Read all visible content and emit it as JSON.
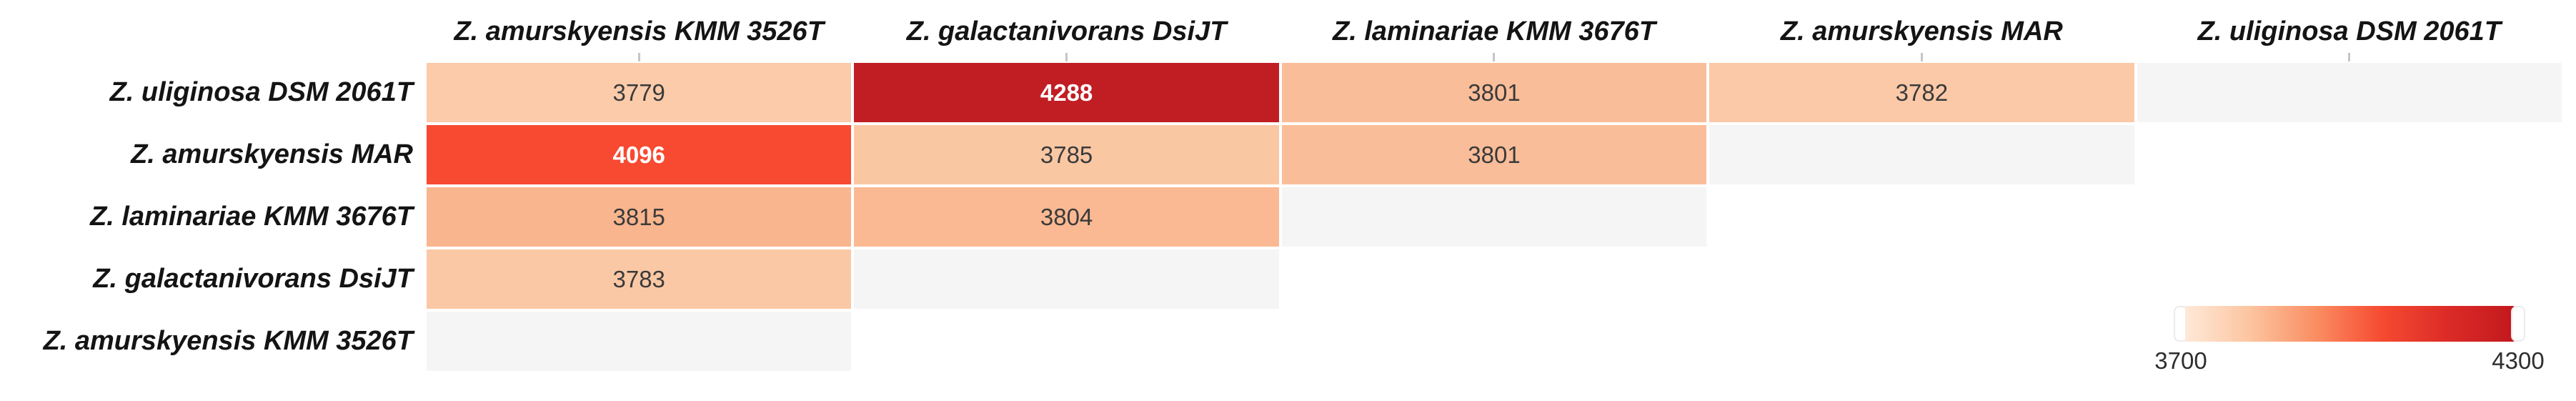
{
  "chart_data": {
    "type": "heatmap",
    "description": "Pairwise lower-triangular matrix of shared values between Zobellia strains",
    "columns": [
      "Z. amurskyensis KMM 3526T",
      "Z. galactanivorans DsiJT",
      "Z. laminariae KMM 3676T",
      "Z. amurskyensis MAR",
      "Z. uliginosa DSM 2061T"
    ],
    "rows": [
      "Z. uliginosa DSM 2061T",
      "Z. amurskyensis MAR",
      "Z. laminariae KMM 3676T",
      "Z. galactanivorans DsiJT",
      "Z. amurskyensis KMM 3526T"
    ],
    "matrix": [
      [
        3779,
        4288,
        3801,
        3782,
        null
      ],
      [
        4096,
        3785,
        3801,
        null,
        null
      ],
      [
        3815,
        3804,
        null,
        null,
        null
      ],
      [
        3783,
        null,
        null,
        null,
        null
      ],
      [
        null,
        null,
        null,
        null,
        null
      ]
    ],
    "value_range": [
      3700,
      4300
    ],
    "legend_position": "bottom-right",
    "grid": false,
    "colorbar": {
      "min_label": "3700",
      "max_label": "4300",
      "stops": [
        "#FEE9D9",
        "#FCC49F",
        "#FA8D62",
        "#F64A31",
        "#DC2B27",
        "#C2191E"
      ],
      "empty_cell_color": "#F5F5F6",
      "tick_color": "#C3C6CA"
    },
    "cells": [
      {
        "value": "3779",
        "bg": "#FBCBAA",
        "fg": "#3A3A3A",
        "weight": "normal"
      },
      {
        "value": "4288",
        "bg": "#C11E24",
        "fg": "#FFFFFF",
        "weight": "bold"
      },
      {
        "value": "3801",
        "bg": "#FABD99",
        "fg": "#3A3A3A",
        "weight": "normal"
      },
      {
        "value": "3782",
        "bg": "#FBC9A7",
        "fg": "#3A3A3A",
        "weight": "normal"
      },
      {
        "value": "",
        "bg": "#F5F5F6",
        "fg": "#3A3A3A",
        "weight": "normal"
      },
      {
        "value": "4096",
        "bg": "#F74A31",
        "fg": "#FFFFFF",
        "weight": "bold"
      },
      {
        "value": "3785",
        "bg": "#FAC7A3",
        "fg": "#3A3A3A",
        "weight": "normal"
      },
      {
        "value": "3801",
        "bg": "#FABD99",
        "fg": "#3A3A3A",
        "weight": "normal"
      },
      {
        "value": "",
        "bg": "#F5F5F6",
        "fg": "#3A3A3A",
        "weight": "normal"
      },
      {
        "value": "",
        "bg": "#FFFFFF",
        "fg": "#3A3A3A",
        "weight": "normal"
      },
      {
        "value": "3815",
        "bg": "#F9B58E",
        "fg": "#3A3A3A",
        "weight": "normal"
      },
      {
        "value": "3804",
        "bg": "#FAB993",
        "fg": "#3A3A3A",
        "weight": "normal"
      },
      {
        "value": "",
        "bg": "#F5F5F6",
        "fg": "#3A3A3A",
        "weight": "normal"
      },
      {
        "value": "",
        "bg": "#FFFFFF",
        "fg": "#3A3A3A",
        "weight": "normal"
      },
      {
        "value": "",
        "bg": "#FFFFFF",
        "fg": "#3A3A3A",
        "weight": "normal"
      },
      {
        "value": "3783",
        "bg": "#FBC8A5",
        "fg": "#3A3A3A",
        "weight": "normal"
      },
      {
        "value": "",
        "bg": "#F5F5F6",
        "fg": "#3A3A3A",
        "weight": "normal"
      },
      {
        "value": "",
        "bg": "#FFFFFF",
        "fg": "#3A3A3A",
        "weight": "normal"
      },
      {
        "value": "",
        "bg": "#FFFFFF",
        "fg": "#3A3A3A",
        "weight": "normal"
      },
      {
        "value": "",
        "bg": "#FFFFFF",
        "fg": "#3A3A3A",
        "weight": "normal"
      },
      {
        "value": "",
        "bg": "#F5F5F6",
        "fg": "#3A3A3A",
        "weight": "normal"
      },
      {
        "value": "",
        "bg": "#FFFFFF",
        "fg": "#3A3A3A",
        "weight": "normal"
      },
      {
        "value": "",
        "bg": "#FFFFFF",
        "fg": "#3A3A3A",
        "weight": "normal"
      },
      {
        "value": "",
        "bg": "#FFFFFF",
        "fg": "#3A3A3A",
        "weight": "normal"
      },
      {
        "value": "",
        "bg": "#FFFFFF",
        "fg": "#3A3A3A",
        "weight": "normal"
      }
    ]
  }
}
